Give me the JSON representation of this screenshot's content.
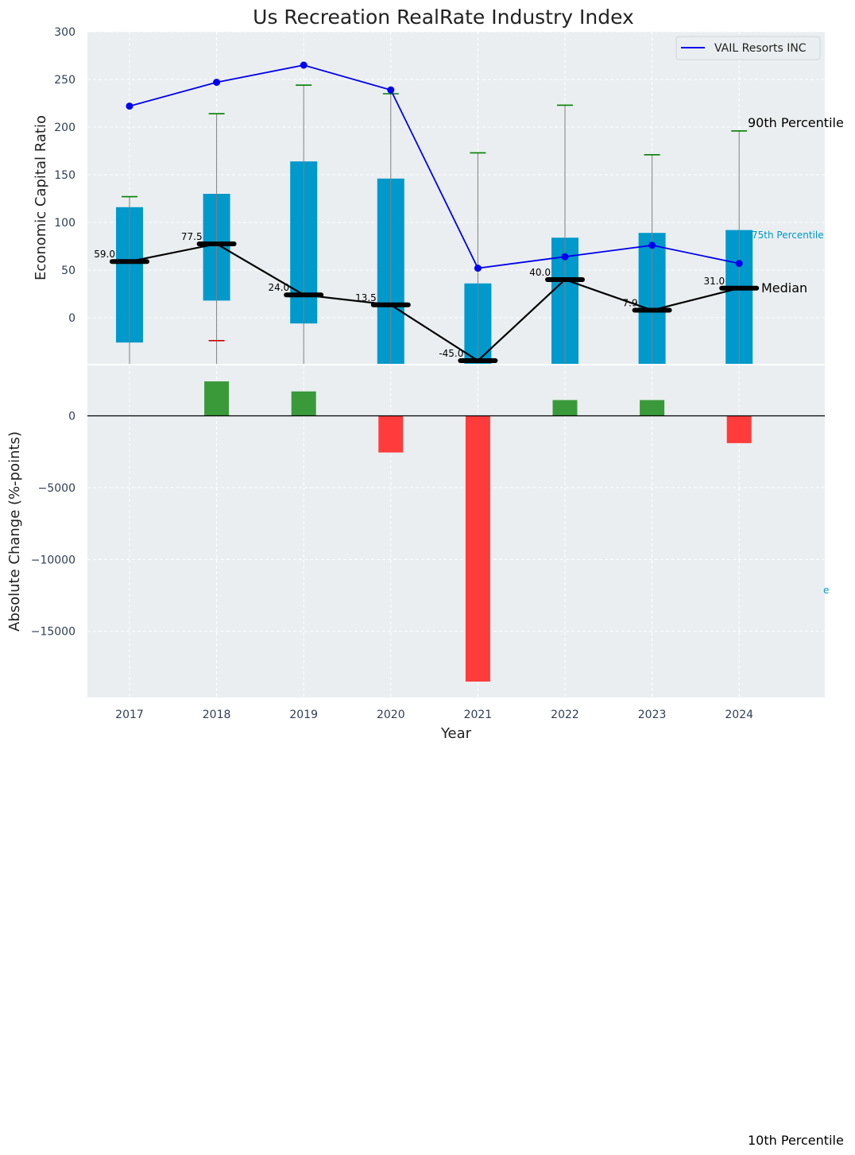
{
  "chart_data": [
    {
      "type": "bar",
      "subtype": "percentile-band",
      "title": "Us Recreation RealRate Industry Index",
      "xlabel": "",
      "ylabel": "Economic Capital Ratio",
      "ylim": [
        -50,
        300
      ],
      "yticks": [
        0,
        50,
        100,
        150,
        200,
        250,
        300
      ],
      "grid": true,
      "categories": [
        "2017",
        "2018",
        "2019",
        "2020",
        "2021",
        "2022",
        "2023",
        "2024"
      ],
      "p90": [
        127,
        214,
        244,
        235,
        173,
        223,
        171,
        196
      ],
      "p75": [
        116,
        130,
        164,
        146,
        36,
        84,
        89,
        92
      ],
      "median": [
        59.0,
        77.5,
        24.0,
        13.5,
        -45.0,
        40.0,
        7.9,
        31.0
      ],
      "median_labels": [
        "59.0",
        "77.5",
        "24.0",
        "13.5",
        "-45.0",
        "40.0",
        "7.9",
        "31.0"
      ],
      "p25": [
        -26,
        18,
        -6,
        -55,
        -60,
        -55,
        -55,
        -55
      ],
      "p10_visible": [
        null,
        -24,
        null,
        null,
        null,
        null,
        null,
        null
      ],
      "series": [
        {
          "name": "VAIL Resorts INC",
          "values": [
            222,
            247,
            265,
            239,
            52,
            64,
            76,
            57
          ],
          "color": "#0000ee"
        }
      ],
      "legend": {
        "position": "top-right",
        "entries": [
          "VAIL Resorts INC"
        ]
      },
      "annotations": {
        "p90": "90th Percentile",
        "p75": "75th Percentile",
        "median": "Median",
        "p10": "10th Percentile",
        "p25_fragment": "e"
      },
      "colors": {
        "band": "#0099cc",
        "median": "#000000",
        "p90_cap": "#008000",
        "p10_cap": "#cc0000",
        "whisker": "#808080",
        "background": "#eaeef0"
      }
    },
    {
      "type": "bar",
      "xlabel": "Year",
      "ylabel": "Absolute Change (%-points)",
      "ylim": [
        -19500,
        2900
      ],
      "yticks": [
        0,
        -5000,
        -10000,
        -15000
      ],
      "ytick_labels": [
        "0",
        "−5000",
        "−10000",
        "−15000"
      ],
      "grid": true,
      "categories": [
        "2017",
        "2018",
        "2019",
        "2020",
        "2021",
        "2022",
        "2023",
        "2024"
      ],
      "values": [
        0,
        2400,
        1700,
        -2550,
        -18500,
        1100,
        1100,
        -1900
      ],
      "colors": {
        "positive": "#3a9a3a",
        "negative": "#ff3b3b",
        "zero_line": "#000000"
      }
    }
  ]
}
